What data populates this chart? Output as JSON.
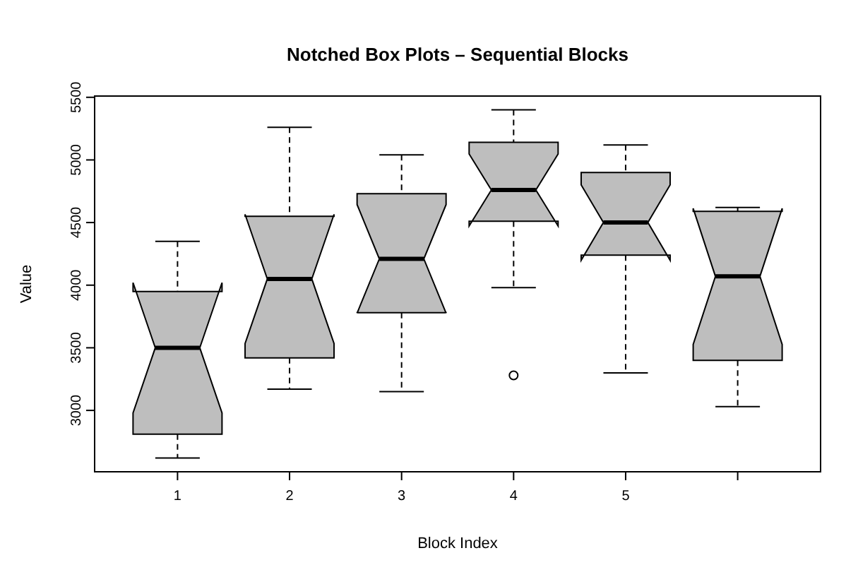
{
  "chart_data": {
    "type": "box",
    "title": "Notched Box Plots – Sequential Blocks",
    "xlabel": "Block Index",
    "ylabel": "Value",
    "categories": [
      "1",
      "2",
      "3",
      "4",
      "5",
      null
    ],
    "color": "#bebebe",
    "ylim": [
      2510,
      5510
    ],
    "yticks": [
      3000,
      3500,
      4000,
      4500,
      5000,
      5500
    ],
    "boxes": [
      {
        "low": 2620,
        "q1": 2810,
        "median": 3500,
        "q3": 3950,
        "high": 4350
      },
      {
        "low": 3170,
        "q1": 3420,
        "median": 4050,
        "q3": 4550,
        "high": 5260
      },
      {
        "low": 3150,
        "q1": 3780,
        "median": 4210,
        "q3": 4730,
        "high": 5040
      },
      {
        "low": 3980,
        "q1": 4510,
        "median": 4760,
        "q3": 5140,
        "high": 5400,
        "outliers": [
          3280
        ]
      },
      {
        "low": 3300,
        "q1": 4240,
        "median": 4500,
        "q3": 4900,
        "high": 5120
      },
      {
        "low": 3030,
        "q1": 3400,
        "median": 4070,
        "q3": 4590,
        "high": 4620
      }
    ]
  }
}
